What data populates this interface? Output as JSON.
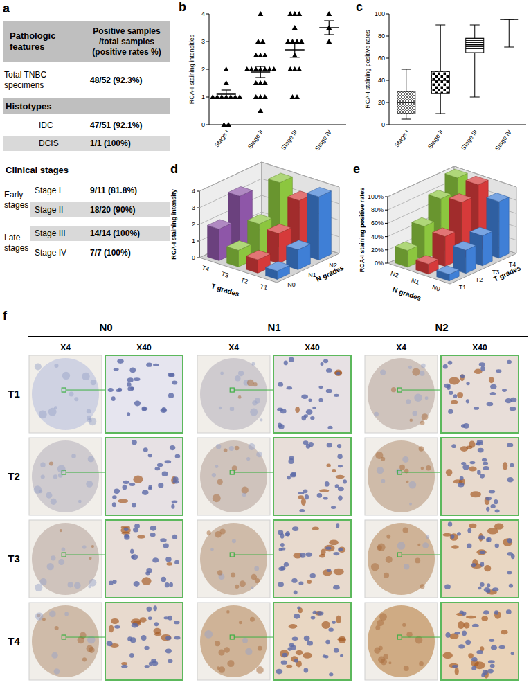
{
  "panel_labels": [
    "a",
    "b",
    "c",
    "d",
    "e",
    "f"
  ],
  "table": {
    "headers": [
      "Pathologic features",
      "Positive samples /total samples (positive rates %)"
    ],
    "total": {
      "label": "Total TNBC specimens",
      "value": "48/52 (92.3%)"
    },
    "histotypes": {
      "title": "Histotypes",
      "rows": [
        {
          "label": "IDC",
          "value": "47/51 (92.1%)"
        },
        {
          "label": "DCIS",
          "value": "1/1 (100%)"
        }
      ]
    },
    "clinical_stages": {
      "title": "Clinical stages",
      "groups": [
        {
          "label": "Early stages",
          "rows": [
            {
              "label": "Stage I",
              "value": "9/11 (81.8%)"
            },
            {
              "label": "Stage II",
              "value": "18/20 (90%)"
            }
          ]
        },
        {
          "label": "Late stages",
          "rows": [
            {
              "label": "Stage III",
              "value": "14/14 (100%)"
            },
            {
              "label": "Stage IV",
              "value": "7/7 (100%)"
            }
          ]
        }
      ]
    }
  },
  "chart_data": [
    {
      "type": "scatter",
      "marker": "triangle",
      "ylabel": "RCA-I staining intensities",
      "categories": [
        "Stage I",
        "Stage II",
        "Stage III",
        "Stage IV"
      ],
      "values": [
        [
          2,
          1.5,
          1,
          1,
          1,
          1,
          1,
          1,
          1,
          0,
          0
        ],
        [
          4,
          3,
          3,
          2.5,
          2.5,
          2.5,
          2,
          2,
          2,
          2,
          2,
          2,
          2,
          1.5,
          1.5,
          1.5,
          1,
          1,
          1,
          0.5
        ],
        [
          4,
          4,
          4,
          3.5,
          3,
          3,
          3,
          3,
          2.5,
          2,
          2,
          2,
          1,
          1
        ],
        [
          4,
          3.5,
          3
        ]
      ],
      "means": [
        1.1,
        1.9,
        2.7,
        3.5
      ],
      "errors": [
        0.15,
        0.2,
        0.27,
        0.25
      ],
      "ylim": [
        0,
        4
      ],
      "yticks": [
        0,
        1,
        2,
        3,
        4
      ]
    },
    {
      "type": "box",
      "ylabel": "RCA-I staining positive rates",
      "categories": [
        "Stage I",
        "Stage II",
        "Stage III",
        "Stage IV"
      ],
      "boxes": [
        {
          "min": 5,
          "q1": 10,
          "median": 20,
          "q3": 30,
          "max": 50
        },
        {
          "min": 10,
          "q1": 28,
          "median": 40,
          "q3": 48,
          "max": 90
        },
        {
          "min": 25,
          "q1": 65,
          "median": 72,
          "q3": 78,
          "max": 90
        },
        {
          "min": 70,
          "q1": 95,
          "median": 95,
          "q3": 95,
          "max": 95
        }
      ],
      "ylim": [
        0,
        100
      ],
      "yticks": [
        0,
        20,
        40,
        60,
        80,
        100
      ]
    },
    {
      "type": "bar3d",
      "ylabel": "RCA-I staining intensity",
      "xlabel": "N grades",
      "depth_axis_label": "T grades",
      "categories": [
        "N0",
        "N1",
        "N2"
      ],
      "series": [
        {
          "name": "T1",
          "color": "#3f7fd6",
          "values": [
            0.5,
            1.2,
            3.8
          ]
        },
        {
          "name": "T2",
          "color": "#d63a3a",
          "values": [
            0.8,
            1.8,
            3.2
          ]
        },
        {
          "name": "T3",
          "color": "#8cc63f",
          "values": [
            1.0,
            2.0,
            3.9
          ]
        },
        {
          "name": "T4",
          "color": "#8e56a8",
          "values": [
            1.9,
            3.3,
            null
          ]
        }
      ],
      "ylim": [
        0,
        4
      ],
      "yticks": [
        0,
        1,
        2,
        3,
        4
      ]
    },
    {
      "type": "bar3d",
      "ylabel": "RCA-I staining positive rates",
      "xlabel": "T grades",
      "depth_axis_label": "N grades",
      "categories": [
        "T1",
        "T2",
        "T3",
        "T4"
      ],
      "series": [
        {
          "name": "N0",
          "color": "#3f7fd6",
          "values": [
            10,
            35,
            45,
            85
          ]
        },
        {
          "name": "N1",
          "color": "#d63a3a",
          "values": [
            15,
            45,
            85,
            100
          ]
        },
        {
          "name": "N2",
          "color": "#8cc63f",
          "values": [
            25,
            50,
            80,
            100
          ]
        }
      ],
      "ylim": [
        0,
        100
      ],
      "yticks": [
        {
          "value": 0,
          "label": "0%"
        },
        {
          "value": 20,
          "label": "20%"
        },
        {
          "value": 40,
          "label": "40%"
        },
        {
          "value": 60,
          "label": "60%"
        },
        {
          "value": 80,
          "label": "80%"
        },
        {
          "value": 100,
          "label": "100%"
        }
      ]
    }
  ],
  "micrographs": {
    "columns": [
      "N0",
      "N1",
      "N2"
    ],
    "magnifications": [
      "X4",
      "X40"
    ],
    "rows": [
      "T1",
      "T2",
      "T3",
      "T4"
    ]
  }
}
